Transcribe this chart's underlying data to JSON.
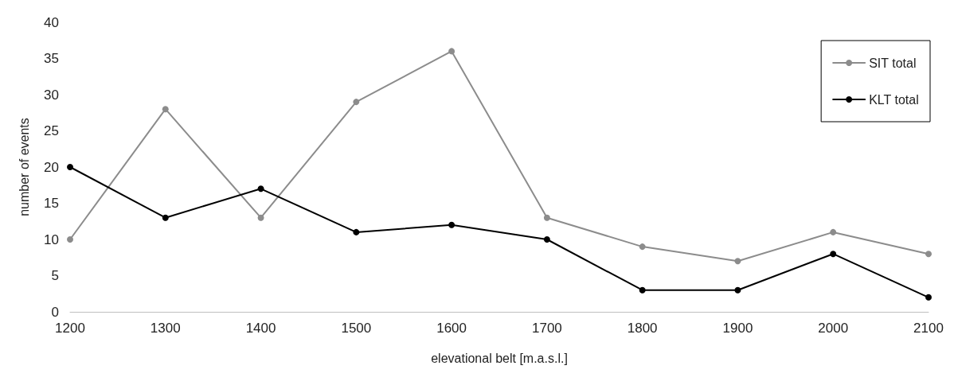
{
  "chart_data": {
    "type": "line",
    "xlabel": "elevational belt [m.a.s.l.]",
    "ylabel": "number of events",
    "x": [
      1200,
      1300,
      1400,
      1500,
      1600,
      1700,
      1800,
      1900,
      2000,
      2100
    ],
    "series": [
      {
        "name": "SIT total",
        "color": "#8c8c8c",
        "values": [
          10,
          28,
          13,
          29,
          36,
          13,
          9,
          7,
          11,
          8
        ]
      },
      {
        "name": "KLT total",
        "color": "#000000",
        "values": [
          20,
          13,
          17,
          11,
          12,
          10,
          3,
          3,
          8,
          2
        ]
      }
    ],
    "xlim": [
      1200,
      2100
    ],
    "xticks": [
      1200,
      1300,
      1400,
      1500,
      1600,
      1700,
      1800,
      1900,
      2000,
      2100
    ],
    "ylim": [
      0,
      40
    ],
    "yticks": [
      0,
      5,
      10,
      15,
      20,
      25,
      30,
      35,
      40
    ],
    "grid": false,
    "legend": "top right",
    "marker": "circle",
    "line_style": "solid"
  }
}
